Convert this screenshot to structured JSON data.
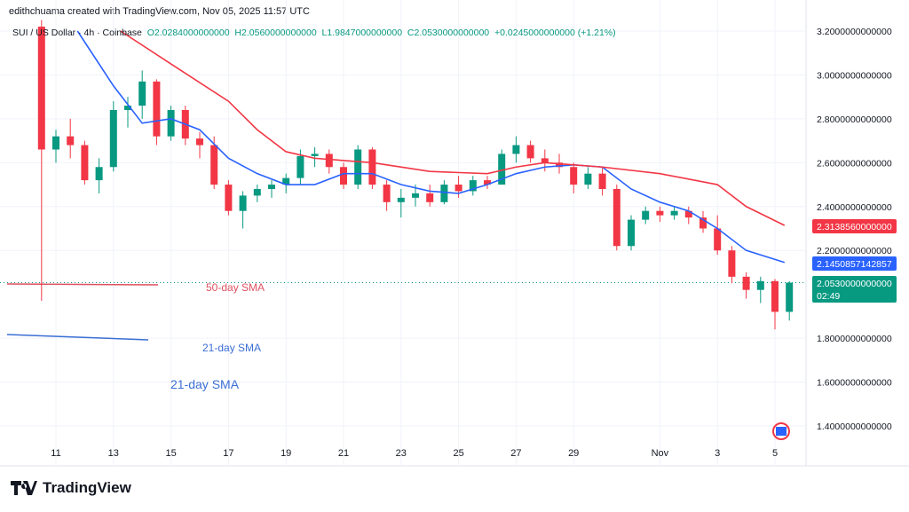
{
  "header": {
    "credit": "edithchuama created with TradingView.com, Nov 05, 2025 11:57 UTC",
    "symbol": "SUI / US Dollar · 4h · Coinbase",
    "open": "O2.0284000000000",
    "high": "H2.0560000000000",
    "low": "L1.9847000000000",
    "close": "C2.0530000000000",
    "change": "+0.0245000000000 (+1.21%)"
  },
  "annotations": {
    "sma50_label": "50-day SMA",
    "sma21_label_small": "21-day SMA",
    "sma21_label_large": "21-day SMA"
  },
  "logo": {
    "text": "TradingView",
    "mark": "TV"
  },
  "badges": {
    "sma50": "2.3138560000000",
    "sma21": "2.1450857142857",
    "price": "2.0530000000000",
    "countdown": "02:49"
  },
  "colors": {
    "up": "#089981",
    "down": "#f23645",
    "sma21": "#2962ff",
    "sma50": "#f23645",
    "grid": "#f0f3fa"
  },
  "chart_data": {
    "type": "candlestick",
    "title": "SUI / US Dollar · 4h · Coinbase",
    "ylim": [
      1.3,
      3.25
    ],
    "y_ticks": [
      "3.2000000000000",
      "3.0000000000000",
      "2.8000000000000",
      "2.6000000000000",
      "2.4000000000000",
      "2.2000000000000",
      "1.8000000000000",
      "1.6000000000000",
      "1.4000000000000"
    ],
    "y_tick_values": [
      3.2,
      3.0,
      2.8,
      2.6,
      2.4,
      2.2,
      1.8,
      1.6,
      1.4
    ],
    "x_ticks": [
      {
        "label": "11",
        "date": "Oct 11"
      },
      {
        "label": "13",
        "date": "Oct 13"
      },
      {
        "label": "15",
        "date": "Oct 15"
      },
      {
        "label": "17",
        "date": "Oct 17"
      },
      {
        "label": "19",
        "date": "Oct 19"
      },
      {
        "label": "21",
        "date": "Oct 21"
      },
      {
        "label": "23",
        "date": "Oct 23"
      },
      {
        "label": "25",
        "date": "Oct 25"
      },
      {
        "label": "27",
        "date": "Oct 27"
      },
      {
        "label": "29",
        "date": "Oct 29"
      },
      {
        "label": "Nov",
        "date": "Nov 01"
      },
      {
        "label": "3",
        "date": "Nov 03"
      },
      {
        "label": "5",
        "date": "Nov 05"
      }
    ],
    "candles": [
      [
        "Oct 10 12:00",
        3.22,
        3.25,
        1.97,
        2.66
      ],
      [
        "Oct 11 00:00",
        2.66,
        2.75,
        2.6,
        2.72
      ],
      [
        "Oct 11 12:00",
        2.72,
        2.8,
        2.62,
        2.68
      ],
      [
        "Oct 12 00:00",
        2.68,
        2.7,
        2.5,
        2.52
      ],
      [
        "Oct 12 12:00",
        2.52,
        2.62,
        2.46,
        2.58
      ],
      [
        "Oct 13 00:00",
        2.58,
        2.88,
        2.56,
        2.84
      ],
      [
        "Oct 13 12:00",
        2.84,
        2.9,
        2.76,
        2.86
      ],
      [
        "Oct 14 00:00",
        2.86,
        3.02,
        2.8,
        2.97
      ],
      [
        "Oct 14 12:00",
        2.97,
        2.98,
        2.68,
        2.72
      ],
      [
        "Oct 15 00:00",
        2.72,
        2.86,
        2.7,
        2.84
      ],
      [
        "Oct 15 12:00",
        2.84,
        2.86,
        2.68,
        2.71
      ],
      [
        "Oct 16 00:00",
        2.71,
        2.74,
        2.62,
        2.68
      ],
      [
        "Oct 16 12:00",
        2.68,
        2.72,
        2.48,
        2.5
      ],
      [
        "Oct 17 00:00",
        2.5,
        2.52,
        2.36,
        2.38
      ],
      [
        "Oct 17 12:00",
        2.38,
        2.47,
        2.3,
        2.45
      ],
      [
        "Oct 18 00:00",
        2.45,
        2.5,
        2.42,
        2.48
      ],
      [
        "Oct 18 12:00",
        2.48,
        2.52,
        2.44,
        2.5
      ],
      [
        "Oct 19 00:00",
        2.5,
        2.55,
        2.46,
        2.53
      ],
      [
        "Oct 19 12:00",
        2.53,
        2.66,
        2.5,
        2.63
      ],
      [
        "Oct 20 00:00",
        2.63,
        2.67,
        2.58,
        2.64
      ],
      [
        "Oct 20 12:00",
        2.64,
        2.66,
        2.55,
        2.58
      ],
      [
        "Oct 21 00:00",
        2.58,
        2.6,
        2.48,
        2.5
      ],
      [
        "Oct 21 12:00",
        2.5,
        2.68,
        2.48,
        2.66
      ],
      [
        "Oct 22 00:00",
        2.66,
        2.67,
        2.48,
        2.5
      ],
      [
        "Oct 22 12:00",
        2.5,
        2.52,
        2.38,
        2.42
      ],
      [
        "Oct 23 00:00",
        2.42,
        2.48,
        2.35,
        2.44
      ],
      [
        "Oct 23 12:00",
        2.44,
        2.5,
        2.4,
        2.46
      ],
      [
        "Oct 24 00:00",
        2.46,
        2.5,
        2.4,
        2.42
      ],
      [
        "Oct 24 12:00",
        2.42,
        2.52,
        2.41,
        2.5
      ],
      [
        "Oct 25 00:00",
        2.5,
        2.54,
        2.44,
        2.47
      ],
      [
        "Oct 25 12:00",
        2.47,
        2.54,
        2.45,
        2.52
      ],
      [
        "Oct 26 00:00",
        2.52,
        2.54,
        2.48,
        2.5
      ],
      [
        "Oct 26 12:00",
        2.5,
        2.66,
        2.5,
        2.64
      ],
      [
        "Oct 27 00:00",
        2.64,
        2.72,
        2.6,
        2.68
      ],
      [
        "Oct 27 12:00",
        2.68,
        2.7,
        2.6,
        2.62
      ],
      [
        "Oct 28 00:00",
        2.62,
        2.66,
        2.56,
        2.6
      ],
      [
        "Oct 28 12:00",
        2.6,
        2.64,
        2.55,
        2.58
      ],
      [
        "Oct 29 00:00",
        2.58,
        2.6,
        2.46,
        2.5
      ],
      [
        "Oct 29 12:00",
        2.5,
        2.58,
        2.48,
        2.55
      ],
      [
        "Oct 30 00:00",
        2.55,
        2.58,
        2.45,
        2.48
      ],
      [
        "Oct 30 12:00",
        2.48,
        2.5,
        2.2,
        2.22
      ],
      [
        "Oct 31 00:00",
        2.22,
        2.36,
        2.2,
        2.34
      ],
      [
        "Oct 31 12:00",
        2.34,
        2.4,
        2.32,
        2.38
      ],
      [
        "Nov 01 00:00",
        2.38,
        2.4,
        2.33,
        2.36
      ],
      [
        "Nov 01 12:00",
        2.36,
        2.4,
        2.34,
        2.38
      ],
      [
        "Nov 02 00:00",
        2.38,
        2.4,
        2.32,
        2.35
      ],
      [
        "Nov 02 12:00",
        2.35,
        2.38,
        2.28,
        2.3
      ],
      [
        "Nov 03 00:00",
        2.3,
        2.36,
        2.18,
        2.2
      ],
      [
        "Nov 03 12:00",
        2.2,
        2.22,
        2.05,
        2.08
      ],
      [
        "Nov 04 00:00",
        2.08,
        2.1,
        1.98,
        2.02
      ],
      [
        "Nov 04 12:00",
        2.02,
        2.08,
        1.96,
        2.06
      ],
      [
        "Nov 05 00:00",
        2.06,
        2.07,
        1.84,
        1.92
      ],
      [
        "Nov 05 12:00",
        1.92,
        2.06,
        1.88,
        2.053
      ]
    ],
    "series": [
      {
        "name": "21-day SMA",
        "points": [
          [
            "Oct 11 18:00",
            3.2
          ],
          [
            "Oct 13 00:00",
            2.95
          ],
          [
            "Oct 14 00:00",
            2.78
          ],
          [
            "Oct 15 00:00",
            2.8
          ],
          [
            "Oct 16 00:00",
            2.75
          ],
          [
            "Oct 17 00:00",
            2.62
          ],
          [
            "Oct 18 00:00",
            2.55
          ],
          [
            "Oct 19 00:00",
            2.5
          ],
          [
            "Oct 20 00:00",
            2.5
          ],
          [
            "Oct 21 00:00",
            2.55
          ],
          [
            "Oct 22 00:00",
            2.55
          ],
          [
            "Oct 23 00:00",
            2.5
          ],
          [
            "Oct 24 00:00",
            2.47
          ],
          [
            "Oct 25 00:00",
            2.46
          ],
          [
            "Oct 26 00:00",
            2.5
          ],
          [
            "Oct 27 00:00",
            2.55
          ],
          [
            "Oct 28 00:00",
            2.58
          ],
          [
            "Oct 29 00:00",
            2.59
          ],
          [
            "Oct 30 00:00",
            2.58
          ],
          [
            "Oct 31 00:00",
            2.48
          ],
          [
            "Nov 01 00:00",
            2.42
          ],
          [
            "Nov 02 00:00",
            2.38
          ],
          [
            "Nov 03 00:00",
            2.3
          ],
          [
            "Nov 04 00:00",
            2.2
          ],
          [
            "Nov 05 08:00",
            2.145
          ]
        ]
      },
      {
        "name": "50-day SMA",
        "points": [
          [
            "Oct 13 06:00",
            3.2
          ],
          [
            "Oct 15 00:00",
            3.05
          ],
          [
            "Oct 17 00:00",
            2.88
          ],
          [
            "Oct 18 00:00",
            2.75
          ],
          [
            "Oct 19 00:00",
            2.65
          ],
          [
            "Oct 20 00:00",
            2.62
          ],
          [
            "Oct 22 00:00",
            2.6
          ],
          [
            "Oct 24 00:00",
            2.56
          ],
          [
            "Oct 26 00:00",
            2.55
          ],
          [
            "Oct 27 00:00",
            2.58
          ],
          [
            "Oct 28 00:00",
            2.6
          ],
          [
            "Oct 30 00:00",
            2.58
          ],
          [
            "Nov 01 00:00",
            2.55
          ],
          [
            "Nov 03 00:00",
            2.5
          ],
          [
            "Nov 04 00:00",
            2.4
          ],
          [
            "Nov 05 08:00",
            2.314
          ]
        ]
      }
    ],
    "last_price": 2.053,
    "grid": true
  }
}
